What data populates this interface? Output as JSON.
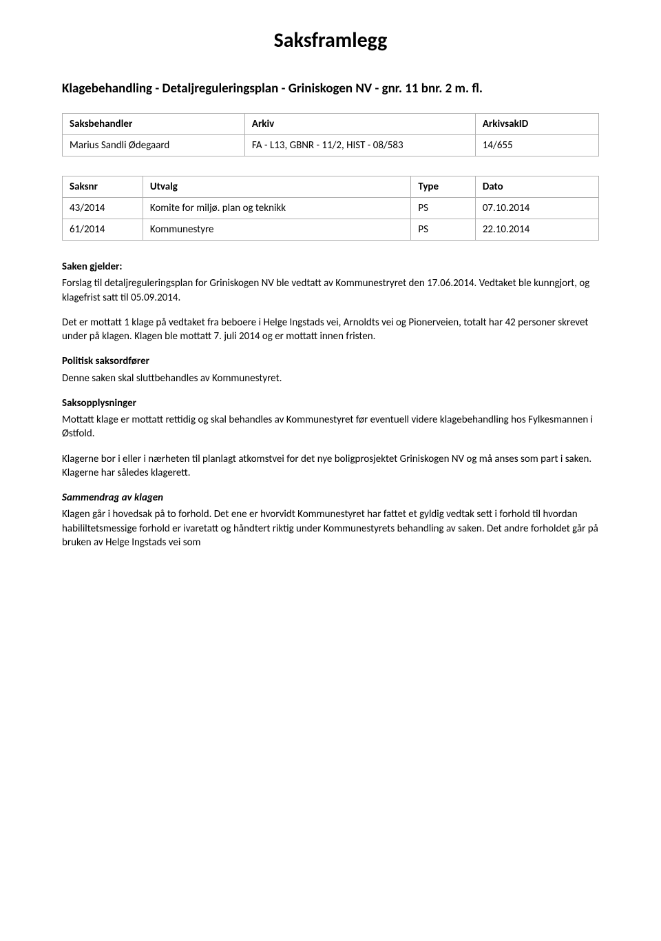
{
  "title": "Saksframlegg",
  "subtitle": "Klagebehandling - Detaljreguleringsplan - Griniskogen NV - gnr. 11 bnr. 2 m. fl.",
  "colors": {
    "text": "#000000",
    "background": "#ffffff",
    "border": "#b0b0b0"
  },
  "typography": {
    "title_fontsize": 30,
    "subtitle_fontsize": 19,
    "body_fontsize": 15,
    "font_family": "Calibri"
  },
  "meta_table": {
    "headers": [
      "Saksbehandler",
      "Arkiv",
      "ArkivsakID"
    ],
    "row": {
      "saksbehandler": "Marius Sandli Ødegaard",
      "arkiv": "FA - L13, GBNR - 11/2, HIST - 08/583",
      "arkivsakid": "14/655"
    },
    "col_widths_pct": [
      34,
      43,
      23
    ]
  },
  "utvalg_table": {
    "headers": [
      "Saksnr",
      "Utvalg",
      "Type",
      "Dato"
    ],
    "rows": [
      {
        "saksnr": "43/2014",
        "utvalg": "Komite for miljø. plan og teknikk",
        "type": "PS",
        "dato": "07.10.2014"
      },
      {
        "saksnr": "61/2014",
        "utvalg": "Kommunestyre",
        "type": "PS",
        "dato": "22.10.2014"
      }
    ],
    "col_widths_pct": [
      15,
      50,
      12,
      23
    ]
  },
  "sections": {
    "saken_gjelder_head": "Saken gjelder:",
    "saken_gjelder_p1": "Forslag til detaljreguleringsplan for Griniskogen NV ble vedtatt av Kommunestryret den 17.06.2014. Vedtaket ble kunngjort, og klagefrist satt til 05.09.2014.",
    "saken_gjelder_p2": "Det er mottatt 1 klage på vedtaket fra beboere i Helge Ingstads vei, Arnoldts vei og Pionerveien, totalt har 42 personer skrevet under på klagen. Klagen ble mottatt 7. juli 2014 og er mottatt innen fristen.",
    "politisk_head": "Politisk saksordfører",
    "politisk_p1": "Denne saken skal sluttbehandles av Kommunestyret.",
    "saksopp_head": "Saksopplysninger",
    "saksopp_p1": "Mottatt klage er mottatt rettidig og skal behandles av Kommunestyret før eventuell videre klagebehandling hos Fylkesmannen i Østfold.",
    "saksopp_p2": "Klagerne bor i eller i nærheten til planlagt atkomstvei for det nye boligprosjektet Griniskogen NV og må anses som part i saken. Klagerne har således klagerett.",
    "sammendrag_head": "Sammendrag av klagen",
    "sammendrag_p1": "Klagen går i hovedsak på to forhold. Det ene er hvorvidt Kommunestyret har fattet et gyldig vedtak sett i forhold til hvordan habililtetsmessige forhold er ivaretatt og håndtert riktig under Kommunestyrets behandling av saken. Det andre forholdet går på bruken av Helge Ingstads vei som"
  }
}
